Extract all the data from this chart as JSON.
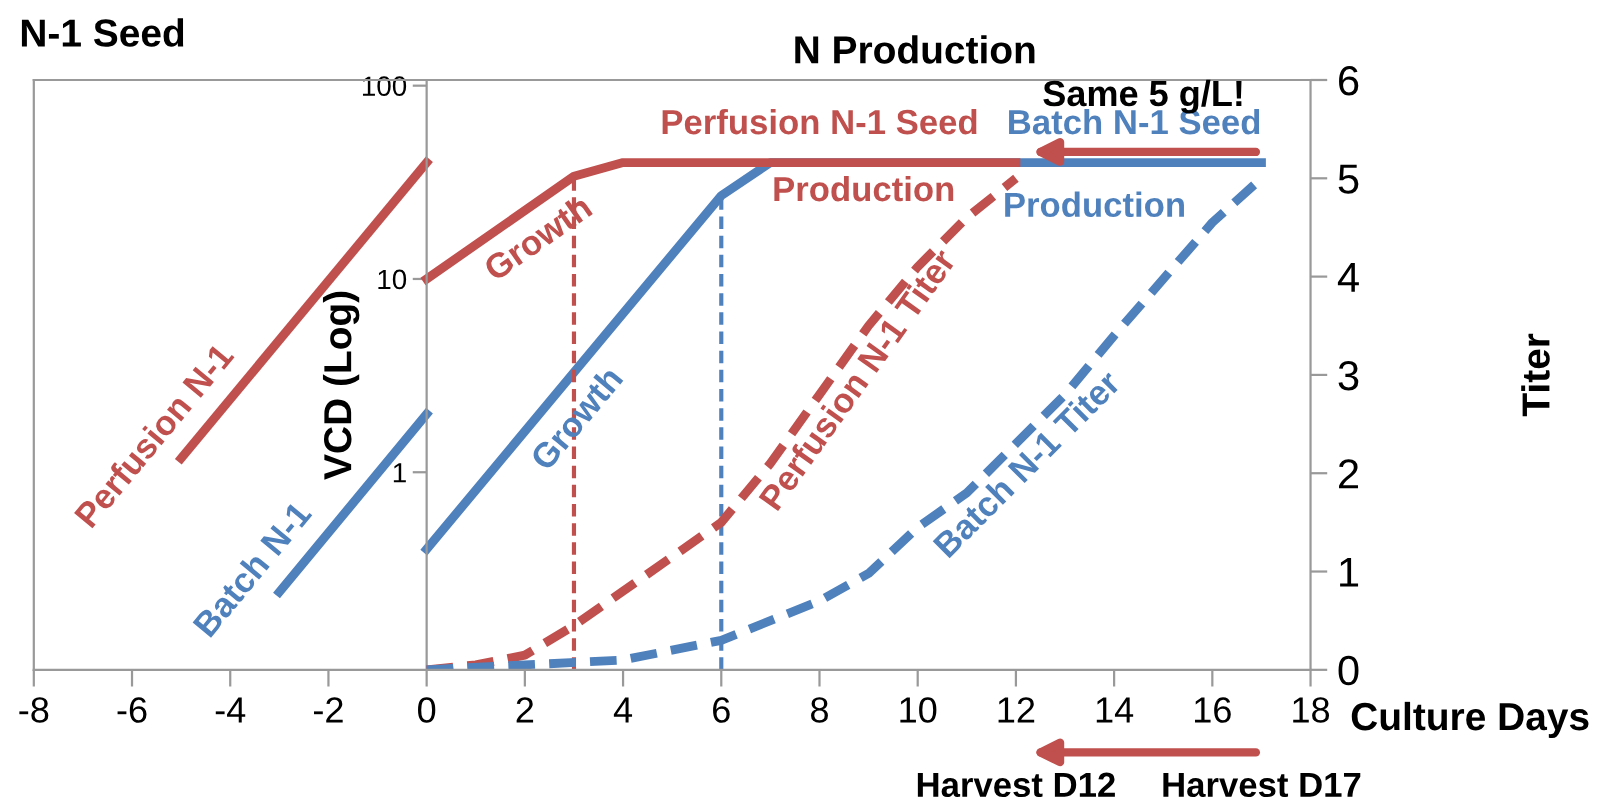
{
  "chart_data": {
    "type": "line",
    "title": "N Production",
    "xlabel": "Culture Days",
    "ylabel": "VCD (Log)",
    "y2label": "Titer",
    "log": "y",
    "grid": false,
    "marker": "none",
    "line_style": "solid",
    "xlim": [
      -8,
      18
    ],
    "xticks": [
      -8,
      -6,
      -4,
      -2,
      0,
      2,
      4,
      6,
      8,
      10,
      12,
      14,
      16,
      18
    ],
    "ylim": [
      0.095,
      107
    ],
    "yticks": [
      1,
      10,
      100
    ],
    "y2lim": [
      0,
      6
    ],
    "y2ticks": [
      0,
      1,
      2,
      3,
      4,
      5,
      6
    ],
    "series": [
      {
        "name": "Perfusion N-1",
        "color": "#c0504d",
        "x": [
          -5,
          0
        ],
        "values": [
          1.18,
          40
        ]
      },
      {
        "name": "Batch N-1",
        "color": "#4f81bd",
        "x": [
          -3,
          0
        ],
        "values": [
          0.24,
          2.0
        ]
      },
      {
        "name": "Batch N-1 Seed",
        "color": "#4f81bd",
        "x": [
          0,
          6,
          7,
          17
        ],
        "values": [
          0.4,
          27,
          40,
          40
        ]
      },
      {
        "name": "Perfusion N-1 Seed",
        "color": "#c0504d",
        "x": [
          0,
          3,
          4,
          12
        ],
        "values": [
          10,
          34,
          40,
          40
        ]
      },
      {
        "name": "Perfusion N-1 Titer",
        "color": "#c0504d",
        "axis": "y2",
        "line_style": "dashed",
        "x": [
          0,
          1,
          2,
          3,
          4,
          5,
          6,
          7,
          8,
          9,
          10,
          11,
          12
        ],
        "values": [
          0,
          0.05,
          0.15,
          0.45,
          0.8,
          1.15,
          1.5,
          2.1,
          2.8,
          3.5,
          4.1,
          4.6,
          5.0
        ]
      },
      {
        "name": "Batch N-1 Titer",
        "color": "#4f81bd",
        "axis": "y2",
        "line_style": "dashed",
        "x": [
          0,
          2,
          4,
          6,
          8,
          9,
          10,
          11,
          12,
          13,
          14,
          16,
          17
        ],
        "values": [
          0,
          0.05,
          0.1,
          0.3,
          0.7,
          0.98,
          1.45,
          1.8,
          2.3,
          2.8,
          3.4,
          4.55,
          5.0
        ]
      }
    ],
    "ref_lines": [
      {
        "axis": "x",
        "value": 3,
        "color": "#c0504d",
        "line_style": "dashed"
      },
      {
        "axis": "x",
        "value": 6,
        "color": "#4f81bd",
        "line_style": "dashed"
      }
    ],
    "annotations": [
      "N-1 Seed",
      "Growth",
      "Growth",
      "Production",
      "Production",
      "Same 5 g/L!",
      "Harvest D12",
      "Harvest D17"
    ]
  }
}
